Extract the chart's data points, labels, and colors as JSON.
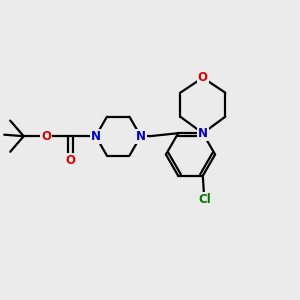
{
  "bg_color": "#ebebeb",
  "bond_color": "#000000",
  "N_color": "#0000cc",
  "O_color": "#dd0000",
  "Cl_color": "#007700",
  "line_width": 1.6,
  "font_size": 8.5,
  "fig_size": [
    3.0,
    3.0
  ],
  "dpi": 100,
  "xlim": [
    0,
    10
  ],
  "ylim": [
    0,
    10
  ]
}
